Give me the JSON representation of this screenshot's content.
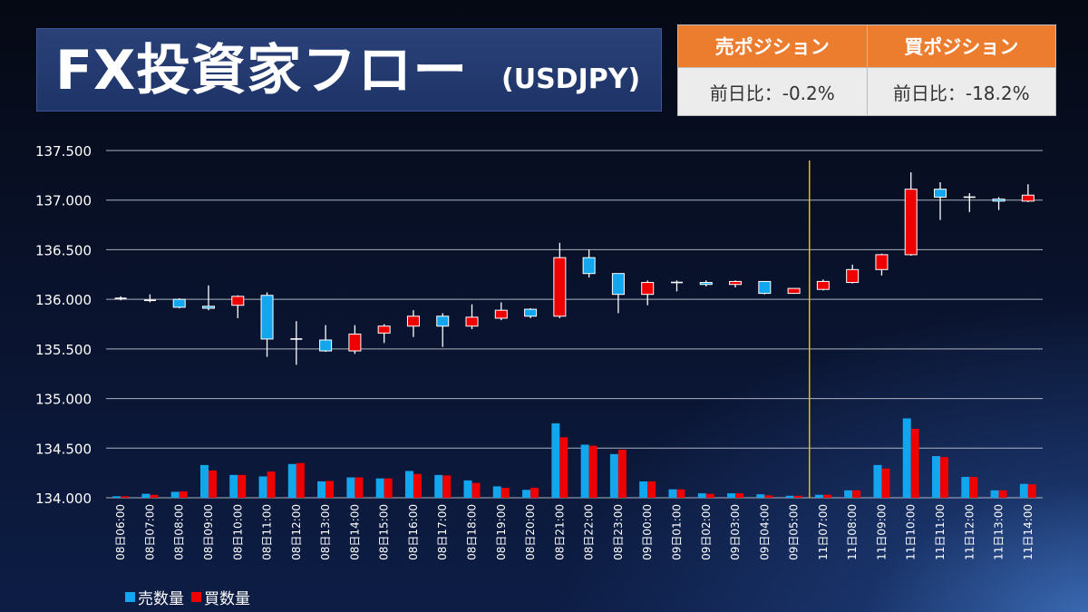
{
  "title": {
    "main": "FX投資家フロー",
    "sub": "(USDJPY)"
  },
  "position_table": {
    "sell": {
      "header": "売ポジション",
      "value": "前日比：-0.2%"
    },
    "buy": {
      "header": "買ポジション",
      "value": "前日比：-18.2%"
    }
  },
  "colors": {
    "sell": "#12a6ee",
    "buy": "#ee0000",
    "marker": "#f2b705",
    "grid": "#c8cdd8",
    "header_orange": "#ec7d2f"
  },
  "legend": {
    "sell_label": "売数量",
    "buy_label": "買数量"
  },
  "chart_data": {
    "type": "candlestick+bar",
    "y_ticks": [
      "137.500",
      "137.000",
      "136.500",
      "136.000",
      "135.500",
      "135.000",
      "134.500",
      "134.000"
    ],
    "ylim": [
      134.0,
      137.5
    ],
    "grid": true,
    "legend_position": "bottom-left",
    "vertical_marker_category": "11日07:00",
    "categories": [
      "08日06:00",
      "08日07:00",
      "08日08:00",
      "08日09:00",
      "08日10:00",
      "08日11:00",
      "08日12:00",
      "08日13:00",
      "08日14:00",
      "08日15:00",
      "08日16:00",
      "08日17:00",
      "08日18:00",
      "08日19:00",
      "08日20:00",
      "08日21:00",
      "08日22:00",
      "08日23:00",
      "09日00:00",
      "09日01:00",
      "09日02:00",
      "09日03:00",
      "09日04:00",
      "09日05:00",
      "11日07:00",
      "11日08:00",
      "11日09:00",
      "11日10:00",
      "11日11:00",
      "11日12:00",
      "11日13:00",
      "11日14:00"
    ],
    "candles": [
      {
        "open": 136.01,
        "high": 136.03,
        "low": 135.99,
        "close": 136.01
      },
      {
        "open": 135.99,
        "high": 136.05,
        "low": 135.97,
        "close": 135.99
      },
      {
        "open": 136.0,
        "high": 136.01,
        "low": 135.91,
        "close": 135.92
      },
      {
        "open": 135.93,
        "high": 136.14,
        "low": 135.89,
        "close": 135.91
      },
      {
        "open": 135.94,
        "high": 136.04,
        "low": 135.81,
        "close": 136.03
      },
      {
        "open": 136.04,
        "high": 136.07,
        "low": 135.42,
        "close": 135.6
      },
      {
        "open": 135.6,
        "high": 135.78,
        "low": 135.34,
        "close": 135.6
      },
      {
        "open": 135.59,
        "high": 135.74,
        "low": 135.47,
        "close": 135.48
      },
      {
        "open": 135.48,
        "high": 135.74,
        "low": 135.45,
        "close": 135.65
      },
      {
        "open": 135.66,
        "high": 135.75,
        "low": 135.56,
        "close": 135.73
      },
      {
        "open": 135.73,
        "high": 135.89,
        "low": 135.62,
        "close": 135.83
      },
      {
        "open": 135.83,
        "high": 135.86,
        "low": 135.52,
        "close": 135.73
      },
      {
        "open": 135.73,
        "high": 135.95,
        "low": 135.7,
        "close": 135.82
      },
      {
        "open": 135.81,
        "high": 135.97,
        "low": 135.79,
        "close": 135.89
      },
      {
        "open": 135.9,
        "high": 135.91,
        "low": 135.81,
        "close": 135.83
      },
      {
        "open": 135.83,
        "high": 136.57,
        "low": 135.81,
        "close": 136.42
      },
      {
        "open": 136.42,
        "high": 136.5,
        "low": 136.22,
        "close": 136.26
      },
      {
        "open": 136.26,
        "high": 136.26,
        "low": 135.86,
        "close": 136.05
      },
      {
        "open": 136.05,
        "high": 136.19,
        "low": 135.94,
        "close": 136.17
      },
      {
        "open": 136.17,
        "high": 136.19,
        "low": 136.08,
        "close": 136.17
      },
      {
        "open": 136.17,
        "high": 136.19,
        "low": 136.13,
        "close": 136.15
      },
      {
        "open": 136.15,
        "high": 136.19,
        "low": 136.12,
        "close": 136.18
      },
      {
        "open": 136.18,
        "high": 136.18,
        "low": 136.05,
        "close": 136.06
      },
      {
        "open": 136.06,
        "high": 136.11,
        "low": 136.06,
        "close": 136.11
      },
      {
        "open": 136.1,
        "high": 136.2,
        "low": 136.09,
        "close": 136.18
      },
      {
        "open": 136.17,
        "high": 136.35,
        "low": 136.16,
        "close": 136.3
      },
      {
        "open": 136.3,
        "high": 136.46,
        "low": 136.24,
        "close": 136.45
      },
      {
        "open": 136.45,
        "high": 137.28,
        "low": 136.44,
        "close": 137.11
      },
      {
        "open": 137.11,
        "high": 137.18,
        "low": 136.8,
        "close": 137.03
      },
      {
        "open": 137.03,
        "high": 137.07,
        "low": 136.88,
        "close": 137.03
      },
      {
        "open": 137.01,
        "high": 137.03,
        "low": 136.9,
        "close": 136.99
      },
      {
        "open": 136.99,
        "high": 137.16,
        "low": 136.98,
        "close": 137.05
      }
    ],
    "series": [
      {
        "name": "売数量",
        "values": [
          0.3,
          0.8,
          1.2,
          6.6,
          4.6,
          4.3,
          6.8,
          3.3,
          4.1,
          3.9,
          5.4,
          4.6,
          3.5,
          2.3,
          1.6,
          15.0,
          10.7,
          8.8,
          3.3,
          1.7,
          0.9,
          0.9,
          0.7,
          0.4,
          0.6,
          1.5,
          6.6,
          16.0,
          8.4,
          4.2,
          1.5,
          2.8
        ]
      },
      {
        "name": "買数量",
        "values": [
          0.3,
          0.6,
          1.3,
          5.5,
          4.6,
          5.3,
          7.0,
          3.4,
          4.1,
          3.9,
          4.8,
          4.5,
          3.0,
          2.0,
          2.0,
          12.2,
          10.5,
          9.7,
          3.3,
          1.7,
          0.8,
          0.9,
          0.5,
          0.4,
          0.6,
          1.5,
          5.9,
          13.9,
          8.2,
          4.2,
          1.5,
          2.7
        ]
      }
    ]
  }
}
